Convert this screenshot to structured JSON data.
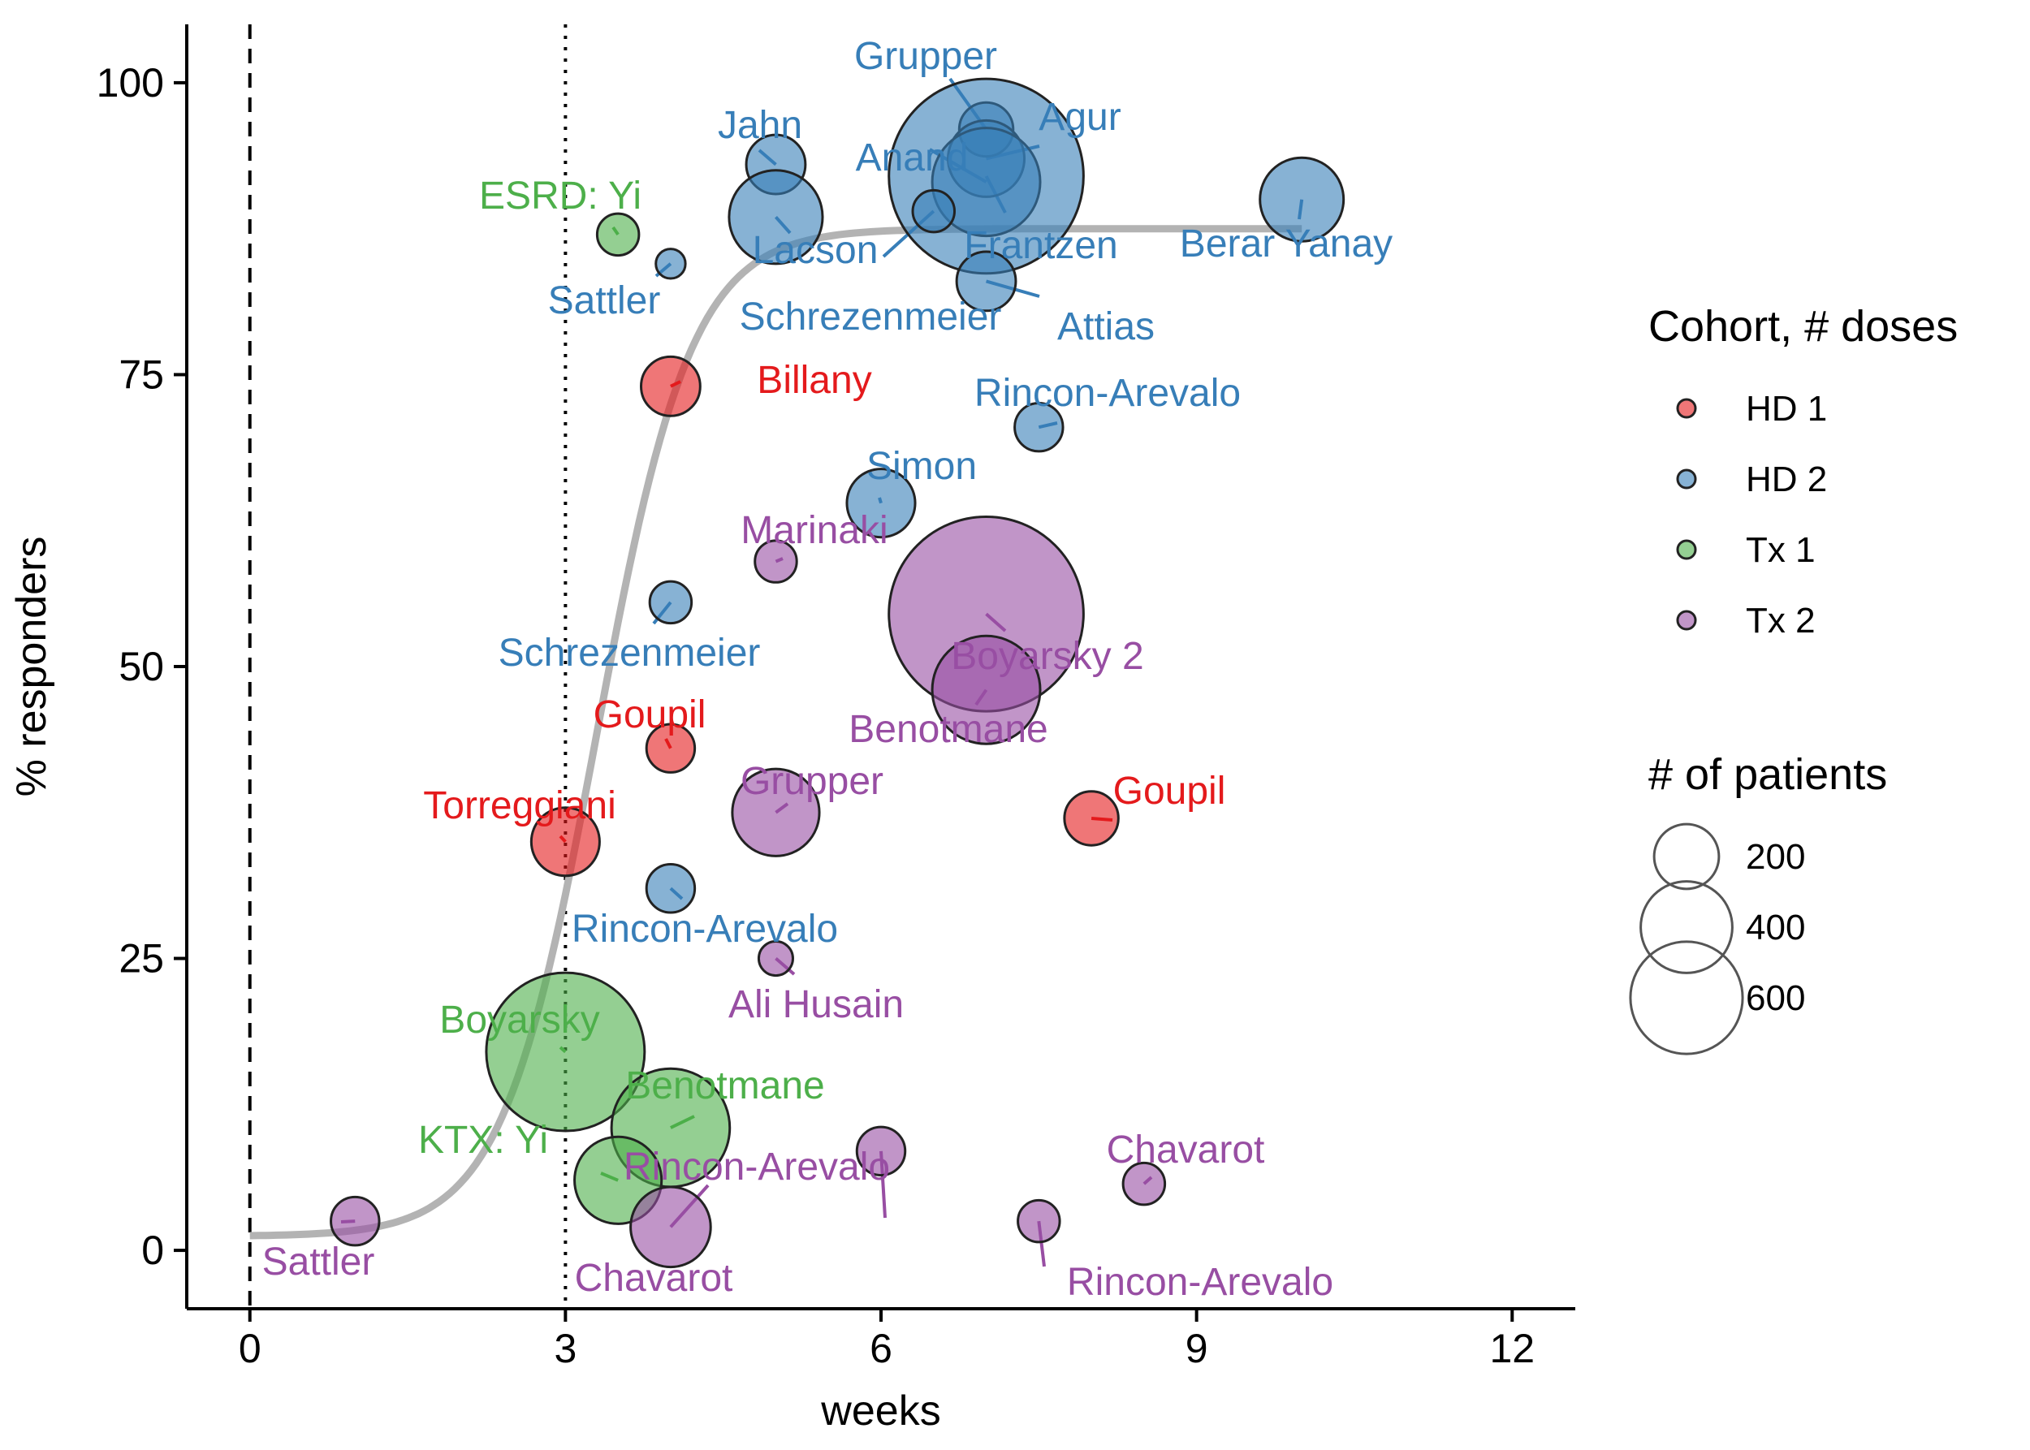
{
  "chart_data": {
    "type": "scatter",
    "xlabel": "weeks",
    "ylabel": "% responders",
    "xlim": [
      -0.6,
      12.6
    ],
    "ylim": [
      -5,
      105
    ],
    "x_ticks": [
      0,
      3,
      6,
      9,
      12
    ],
    "y_ticks": [
      0,
      25,
      50,
      75,
      100
    ],
    "grid": false,
    "reference_lines": [
      {
        "x": 0,
        "style": "dashed"
      },
      {
        "x": 3,
        "style": "dotted"
      }
    ],
    "fit_curve": {
      "type": "logistic",
      "lower": 1.2,
      "upper": 87.5,
      "midpoint": 3.3,
      "scale": 0.45,
      "color": "#b3b3b3"
    },
    "legend": {
      "position": "right",
      "color_title": "Cohort, # doses",
      "size_title": "# of patients",
      "size_entries": [
        200,
        400,
        600
      ]
    },
    "series": [
      {
        "name": "HD 1",
        "color": "#e41a1c",
        "points": [
          {
            "label": "Billany",
            "x": 4,
            "y": 74,
            "n": 60
          },
          {
            "label": "Goupil",
            "x": 4,
            "y": 43,
            "n": 40
          },
          {
            "label": "Torreggiani",
            "x": 3,
            "y": 35,
            "n": 80
          },
          {
            "label": "Goupil",
            "x": 8,
            "y": 37,
            "n": 50
          }
        ]
      },
      {
        "name": "HD 2",
        "color": "#377eb8",
        "points": [
          {
            "label": "Grupper",
            "x": 7,
            "y": 96,
            "n": 50
          },
          {
            "label": "Agur",
            "x": 7,
            "y": 93.5,
            "n": 100
          },
          {
            "label": "Anand",
            "x": 7,
            "y": 91.5,
            "n": 200
          },
          {
            "label": "Frantzen",
            "x": 7,
            "y": 92,
            "n": 650
          },
          {
            "label": "Jahn",
            "x": 5,
            "y": 93,
            "n": 60
          },
          {
            "label": "Lacson",
            "x": 5,
            "y": 88.5,
            "n": 150
          },
          {
            "label": "Schrezenmeier",
            "x": 6.5,
            "y": 89,
            "n": 30
          },
          {
            "label": "Sattler",
            "x": 4,
            "y": 84.5,
            "n": 15
          },
          {
            "label": "Berar Yanay",
            "x": 10,
            "y": 90,
            "n": 120
          },
          {
            "label": "Attias",
            "x": 7,
            "y": 83,
            "n": 60
          },
          {
            "label": "Rincon-Arevalo",
            "x": 7.5,
            "y": 70.5,
            "n": 40
          },
          {
            "label": "Simon",
            "x": 6,
            "y": 64,
            "n": 80
          },
          {
            "label": "Schrezenmeier",
            "x": 4,
            "y": 55.5,
            "n": 30
          },
          {
            "label": "Rincon-Arevalo",
            "x": 4,
            "y": 31,
            "n": 40
          }
        ]
      },
      {
        "name": "Tx 1",
        "color": "#4daf4a",
        "points": [
          {
            "label": "ESRD: Yi",
            "x": 3.5,
            "y": 87,
            "n": 30
          },
          {
            "label": "Boyarsky",
            "x": 3,
            "y": 17,
            "n": 430
          },
          {
            "label": "Benotmane",
            "x": 4,
            "y": 10.5,
            "n": 240
          },
          {
            "label": "KTX: Yi",
            "x": 3.5,
            "y": 6,
            "n": 130
          }
        ]
      },
      {
        "name": "Tx 2",
        "color": "#984ea3",
        "points": [
          {
            "label": "Marinaki",
            "x": 5,
            "y": 59,
            "n": 30
          },
          {
            "label": "Boyarsky 2",
            "x": 7,
            "y": 54.5,
            "n": 650
          },
          {
            "label": "Benotmane",
            "x": 7,
            "y": 48,
            "n": 200
          },
          {
            "label": "Grupper",
            "x": 5,
            "y": 37.5,
            "n": 130
          },
          {
            "label": "Ali Husain",
            "x": 5,
            "y": 25,
            "n": 20
          },
          {
            "label": "Rincon-Arevalo",
            "x": 6,
            "y": 8.5,
            "n": 40
          },
          {
            "label": "Chavarot",
            "x": 8.5,
            "y": 5.7,
            "n": 30
          },
          {
            "label": "Chavarot",
            "x": 4,
            "y": 2,
            "n": 110
          },
          {
            "label": "Sattler",
            "x": 1,
            "y": 2.5,
            "n": 40
          },
          {
            "label": "Rincon-Arevalo",
            "x": 7.5,
            "y": 2.5,
            "n": 30
          }
        ]
      }
    ]
  }
}
